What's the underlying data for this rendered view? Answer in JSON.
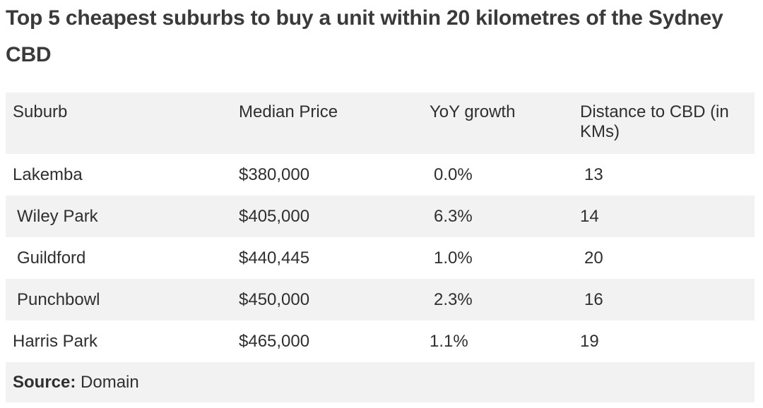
{
  "title": "Top 5 cheapest suburbs to buy a unit within 20 kilometres of the Sydney CBD",
  "table": {
    "headers": [
      "Suburb",
      "Median Price",
      "YoY growth",
      "Distance to CBD (in KMs)"
    ],
    "rows": [
      [
        "Lakemba",
        "$380,000",
        "0.0%",
        "13"
      ],
      [
        "Wiley Park",
        "$405,000",
        "6.3%",
        "14"
      ],
      [
        "Guildford",
        "$440,445",
        "1.0%",
        "20"
      ],
      [
        "Punchbowl",
        "$450,000",
        "2.3%",
        "16"
      ],
      [
        "Harris Park",
        "$465,000",
        "1.1%",
        "19"
      ]
    ]
  },
  "source": {
    "label": "Source:",
    "value": "Domain"
  }
}
